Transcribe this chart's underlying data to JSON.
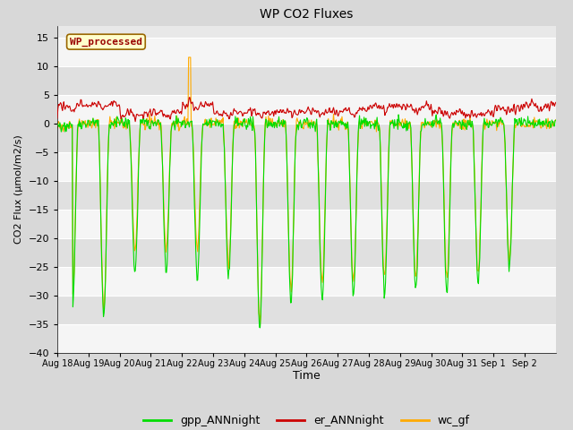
{
  "title": "WP CO2 Fluxes",
  "xlabel": "Time",
  "ylabel": "CO2 Flux (μmol/m2/s)",
  "ylim": [
    -40,
    17
  ],
  "yticks": [
    -40,
    -35,
    -30,
    -25,
    -20,
    -15,
    -10,
    -5,
    0,
    5,
    10,
    15
  ],
  "n_days": 16,
  "points_per_day": 48,
  "legend_labels": [
    "gpp_ANNnight",
    "er_ANNnight",
    "wc_gf"
  ],
  "legend_colors": [
    "#00dd00",
    "#cc0000",
    "#ffaa00"
  ],
  "watermark_text": "WP_processed",
  "watermark_bg": "#ffffcc",
  "watermark_border": "#996600",
  "watermark_textcolor": "#990000",
  "bg_color": "#d8d8d8",
  "plot_bg": "#e8e8e8",
  "grid_color": "#ffffff",
  "gpp_color": "#00dd00",
  "er_color": "#cc0000",
  "wc_color": "#ffaa00",
  "line_width": 0.8,
  "x_tick_labels": [
    "Aug 18",
    "Aug 19",
    "Aug 20",
    "Aug 21",
    "Aug 22",
    "Aug 23",
    "Aug 24",
    "Aug 25",
    "Aug 26",
    "Aug 27",
    "Aug 28",
    "Aug 29",
    "Aug 30",
    "Aug 31",
    "Sep 1",
    "Sep 2"
  ],
  "seed": 42,
  "figsize": [
    6.4,
    4.8
  ],
  "dpi": 100
}
